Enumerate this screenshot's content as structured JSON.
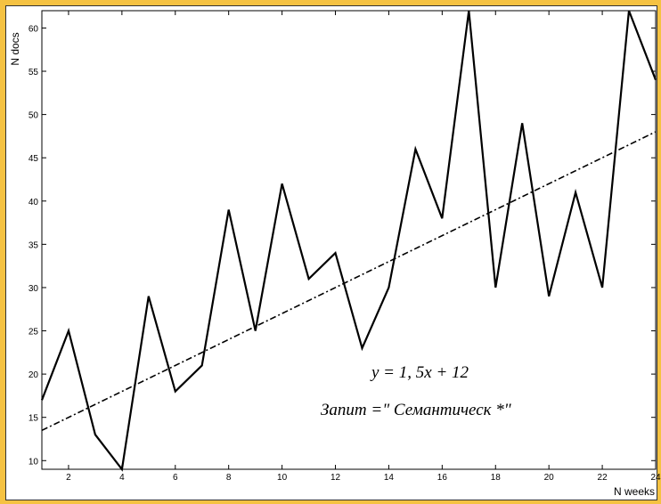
{
  "chart_data": {
    "type": "line",
    "xlabel": "N weeks",
    "ylabel": "N docs",
    "xlim": [
      1,
      24
    ],
    "ylim": [
      9,
      62
    ],
    "xticks": [
      2,
      4,
      6,
      8,
      10,
      12,
      14,
      16,
      18,
      20,
      22,
      24
    ],
    "yticks": [
      10,
      15,
      20,
      25,
      30,
      35,
      40,
      45,
      50,
      55,
      60
    ],
    "grid": false,
    "series": [
      {
        "style": "solid",
        "x": [
          1,
          2,
          3,
          4,
          5,
          6,
          7,
          8,
          9,
          10,
          11,
          12,
          13,
          14,
          15,
          16,
          17,
          18,
          19,
          20,
          21,
          22,
          23,
          24
        ],
        "values": [
          17,
          25,
          13,
          9,
          29,
          18,
          21,
          39,
          25,
          42,
          31,
          34,
          23,
          30,
          46,
          38,
          62,
          30,
          49,
          29,
          41,
          30,
          62,
          54
        ]
      },
      {
        "style": "dash-dot",
        "x": [
          1,
          24
        ],
        "values": [
          13.5,
          48
        ]
      }
    ],
    "annotations": [
      "y = 1, 5x + 12",
      "Запит =\" Семантическ *\""
    ],
    "colors": {
      "background": "#f5c242",
      "plot": "#ffffff",
      "line": "#000000"
    }
  }
}
